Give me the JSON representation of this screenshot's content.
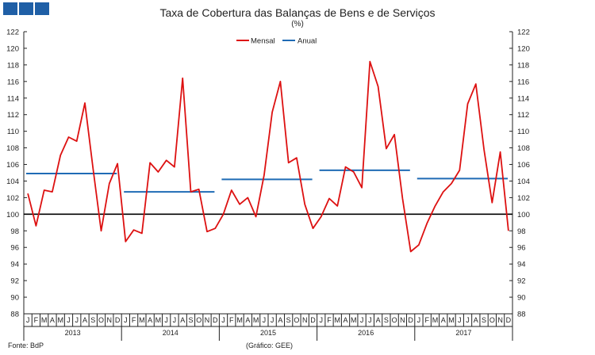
{
  "header": {
    "title": "Taxa de Cobertura das Balanças de Bens e de Serviços",
    "unit": "(%)",
    "logo_color": "#1f5fa6"
  },
  "footer": {
    "source": "Fonte: BdP",
    "credit": "(Gráfico: GEE)"
  },
  "chart_data": {
    "type": "line",
    "ylim": [
      88,
      122
    ],
    "yticks": [
      88,
      90,
      92,
      94,
      96,
      98,
      100,
      102,
      104,
      106,
      108,
      110,
      112,
      114,
      116,
      118,
      120,
      122
    ],
    "month_labels": [
      "J",
      "F",
      "M",
      "A",
      "M",
      "J",
      "J",
      "A",
      "S",
      "O",
      "N",
      "D"
    ],
    "years": [
      "2013",
      "2014",
      "2015",
      "2016",
      "2017"
    ],
    "reference_line": 100,
    "legend_position": "top-center",
    "grid": false,
    "series": [
      {
        "name": "Mensal",
        "color": "#dd1111",
        "values": [
          102.5,
          98.6,
          102.9,
          102.7,
          107.1,
          109.3,
          108.8,
          113.4,
          105.5,
          98.0,
          103.7,
          106.1,
          96.7,
          98.1,
          97.7,
          106.2,
          105.1,
          106.5,
          105.7,
          116.4,
          102.7,
          103.0,
          97.9,
          98.3,
          100.0,
          102.9,
          101.2,
          102.0,
          99.7,
          104.7,
          112.3,
          116.0,
          106.2,
          106.8,
          101.2,
          98.3,
          99.7,
          101.9,
          101.0,
          105.7,
          105.1,
          103.2,
          118.4,
          115.4,
          107.9,
          109.6,
          101.9,
          95.5,
          96.3,
          98.9,
          101.0,
          102.7,
          103.7,
          105.3,
          113.3,
          115.7,
          107.8,
          101.4,
          107.5,
          98.0
        ]
      },
      {
        "name": "Anual",
        "color": "#1f6bb5",
        "values": [
          104.9,
          102.7,
          104.2,
          105.3,
          104.3
        ]
      }
    ]
  }
}
